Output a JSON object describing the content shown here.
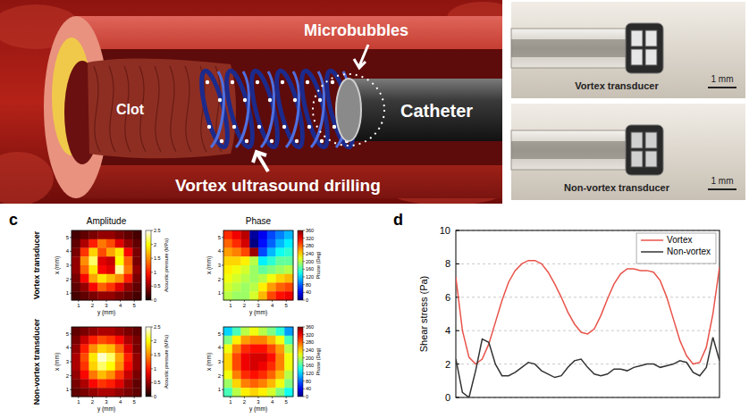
{
  "illustration": {
    "labels": {
      "clot": "Clot",
      "microbubbles": "Microbubbles",
      "catheter": "Catheter",
      "drilling": "Vortex ultrasound drilling"
    }
  },
  "photos": [
    {
      "label": "Vortex transducer",
      "scale_bar": "1 mm"
    },
    {
      "label": "Non-vortex transducer",
      "scale_bar": "1 mm"
    }
  ],
  "panel_c": {
    "letter": "c",
    "column_titles": [
      "Amplitude",
      "Phase"
    ],
    "row_labels": [
      "Vortex transducer",
      "Non-vortex transducer"
    ]
  },
  "panel_d": {
    "letter": "d"
  },
  "chart_data": [
    {
      "type": "heatmap",
      "xlabel": "y (mm)",
      "ylabel": "x (mm)",
      "xlim": [
        0.5,
        5.5
      ],
      "ylim": [
        0.5,
        5.5
      ],
      "xticks": [
        1,
        2,
        3,
        4,
        5
      ],
      "yticks": [
        1,
        2,
        3,
        4,
        5
      ],
      "cells": [
        [
          0.2,
          0.3,
          0.4,
          0.5,
          0.5,
          0.4,
          0.3,
          0.2
        ],
        [
          0.3,
          0.6,
          1.0,
          1.4,
          1.2,
          0.8,
          0.5,
          0.3
        ],
        [
          0.4,
          1.1,
          1.8,
          1.2,
          1.6,
          1.9,
          0.9,
          0.4
        ],
        [
          0.5,
          1.5,
          2.2,
          0.8,
          0.7,
          2.0,
          1.3,
          0.4
        ],
        [
          0.5,
          1.3,
          1.9,
          0.9,
          0.8,
          2.3,
          1.4,
          0.5
        ],
        [
          0.4,
          0.9,
          1.6,
          1.9,
          1.7,
          1.5,
          1.0,
          0.4
        ],
        [
          0.3,
          0.5,
          0.9,
          1.3,
          1.1,
          0.8,
          0.5,
          0.3
        ],
        [
          0.2,
          0.3,
          0.4,
          0.5,
          0.5,
          0.4,
          0.3,
          0.2
        ]
      ],
      "colorbar": {
        "label": "Acoustic pressure (MPa)",
        "lim": [
          0,
          2.5
        ],
        "ticks": [
          0,
          0.5,
          1,
          1.5,
          2,
          2.5
        ]
      }
    },
    {
      "type": "heatmap",
      "xlabel": "y (mm)",
      "ylabel": "x (mm)",
      "xlim": [
        0.5,
        5.5
      ],
      "ylim": [
        0.5,
        5.5
      ],
      "xticks": [
        1,
        2,
        3,
        4,
        5
      ],
      "yticks": [
        1,
        2,
        3,
        4,
        5
      ],
      "cells": [
        [
          300,
          320,
          340,
          10,
          40,
          70,
          90,
          110
        ],
        [
          280,
          300,
          330,
          0,
          50,
          80,
          110,
          130
        ],
        [
          260,
          270,
          290,
          350,
          70,
          110,
          140,
          150
        ],
        [
          240,
          240,
          230,
          200,
          130,
          150,
          170,
          170
        ],
        [
          230,
          220,
          210,
          190,
          170,
          180,
          190,
          200
        ],
        [
          220,
          210,
          200,
          190,
          200,
          220,
          240,
          250
        ],
        [
          210,
          200,
          190,
          200,
          230,
          260,
          280,
          290
        ],
        [
          200,
          190,
          190,
          210,
          250,
          290,
          310,
          320
        ]
      ],
      "colorbar": {
        "label": "Phase (Deg)",
        "lim": [
          0,
          360
        ],
        "ticks": [
          0,
          40,
          80,
          120,
          160,
          200,
          240,
          280,
          320,
          360
        ]
      }
    },
    {
      "type": "heatmap",
      "xlabel": "y (mm)",
      "ylabel": "x (mm)",
      "xlim": [
        0.5,
        5.5
      ],
      "ylim": [
        0.5,
        5.5
      ],
      "xticks": [
        1,
        2,
        3,
        4,
        5
      ],
      "yticks": [
        1,
        2,
        3,
        4,
        5
      ],
      "cells": [
        [
          0.3,
          0.4,
          0.5,
          0.6,
          0.6,
          0.5,
          0.4,
          0.3
        ],
        [
          0.4,
          0.7,
          1.0,
          1.2,
          1.1,
          0.9,
          0.6,
          0.4
        ],
        [
          0.5,
          1.0,
          1.5,
          1.8,
          1.7,
          1.3,
          0.8,
          0.4
        ],
        [
          0.6,
          1.2,
          1.9,
          2.4,
          2.2,
          1.6,
          1.0,
          0.5
        ],
        [
          0.6,
          1.1,
          1.8,
          2.2,
          2.0,
          1.5,
          0.9,
          0.5
        ],
        [
          0.5,
          0.9,
          1.4,
          1.7,
          1.5,
          1.1,
          0.7,
          0.4
        ],
        [
          0.4,
          0.6,
          0.9,
          1.1,
          1.0,
          0.8,
          0.5,
          0.3
        ],
        [
          0.3,
          0.4,
          0.5,
          0.6,
          0.6,
          0.5,
          0.4,
          0.3
        ]
      ],
      "colorbar": {
        "label": "Acoustic pressure (MPa)",
        "lim": [
          0,
          2.5
        ],
        "ticks": [
          0,
          0.5,
          1,
          1.5,
          2,
          2.5
        ]
      }
    },
    {
      "type": "heatmap",
      "xlabel": "y (mm)",
      "ylabel": "x (mm)",
      "xlim": [
        0.5,
        5.5
      ],
      "ylim": [
        0.5,
        5.5
      ],
      "xticks": [
        1,
        2,
        3,
        4,
        5
      ],
      "yticks": [
        1,
        2,
        3,
        4,
        5
      ],
      "cells": [
        [
          120,
          160,
          200,
          220,
          200,
          180,
          150,
          100
        ],
        [
          180,
          230,
          260,
          270,
          270,
          250,
          220,
          160
        ],
        [
          220,
          270,
          300,
          310,
          310,
          290,
          260,
          200
        ],
        [
          240,
          290,
          320,
          330,
          330,
          310,
          270,
          220
        ],
        [
          240,
          290,
          320,
          330,
          320,
          300,
          270,
          220
        ],
        [
          220,
          270,
          300,
          310,
          300,
          280,
          250,
          200
        ],
        [
          190,
          240,
          270,
          280,
          270,
          250,
          220,
          180
        ],
        [
          160,
          200,
          230,
          240,
          230,
          210,
          180,
          140
        ]
      ],
      "colorbar": {
        "label": "Phase (Deg)",
        "lim": [
          0,
          360
        ],
        "ticks": [
          0,
          40,
          80,
          120,
          160,
          200,
          240,
          280,
          320,
          360
        ]
      }
    },
    {
      "type": "line",
      "ylabel": "Shear stress (Pa)",
      "ylim": [
        0,
        10
      ],
      "yticks": [
        0,
        2,
        4,
        6,
        8,
        10
      ],
      "tick_labels": "y",
      "grid": true,
      "legend": "top-right",
      "series": [
        {
          "name": "Vortex",
          "color": "#e8534a",
          "values": [
            7.2,
            4.0,
            2.4,
            2.0,
            2.3,
            3.2,
            4.5,
            5.8,
            6.9,
            7.6,
            8.0,
            8.2,
            8.2,
            8.0,
            7.5,
            6.8,
            6.0,
            5.1,
            4.4,
            3.9,
            3.8,
            4.1,
            4.9,
            5.9,
            6.8,
            7.4,
            7.7,
            7.7,
            7.6,
            7.6,
            7.5,
            7.0,
            6.0,
            4.7,
            3.4,
            2.5,
            2.0,
            2.1,
            3.0,
            5.0,
            7.8
          ]
        },
        {
          "name": "Non-vortex",
          "color": "#333333",
          "values": [
            2.3,
            0.3,
            0.0,
            1.6,
            3.5,
            3.3,
            2.0,
            1.3,
            1.3,
            1.5,
            1.8,
            2.1,
            2.0,
            1.6,
            1.4,
            1.2,
            1.3,
            1.8,
            2.2,
            2.3,
            1.8,
            1.4,
            1.3,
            1.4,
            1.7,
            1.7,
            1.6,
            1.8,
            1.9,
            2.0,
            2.0,
            1.8,
            1.9,
            2.0,
            2.2,
            2.1,
            1.5,
            1.3,
            1.8,
            3.6,
            2.2
          ]
        }
      ]
    }
  ]
}
